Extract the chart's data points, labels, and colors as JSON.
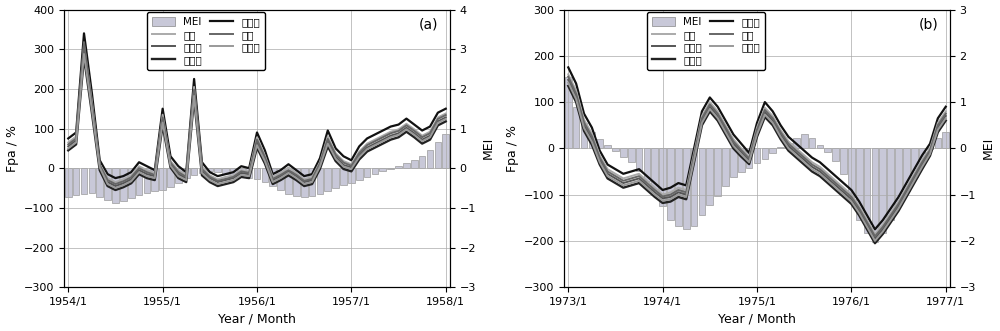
{
  "panel_a": {
    "label": "(a)",
    "xlabel": "Year / Month",
    "ylabel_left": "Fpa / %",
    "ylabel_right": "MEI",
    "ylim_left": [
      -300,
      400
    ],
    "ylim_right": [
      -3,
      4
    ],
    "yticks_left": [
      -300,
      -200,
      -100,
      0,
      100,
      200,
      300,
      400
    ],
    "yticks_right": [
      -3,
      -2,
      -1,
      0,
      1,
      2,
      3,
      4
    ],
    "xtick_labels": [
      "1954/1",
      "1955/1",
      "1956/1",
      "1957/1",
      "1958/1"
    ],
    "xtick_positions": [
      0,
      12,
      24,
      36,
      48
    ],
    "n_months": 49,
    "mei": [
      -0.72,
      -0.68,
      -0.65,
      -0.62,
      -0.72,
      -0.8,
      -0.88,
      -0.82,
      -0.75,
      -0.68,
      -0.62,
      -0.58,
      -0.55,
      -0.48,
      -0.38,
      -0.25,
      -0.18,
      -0.12,
      -0.08,
      -0.1,
      -0.15,
      -0.2,
      -0.22,
      -0.25,
      -0.28,
      -0.35,
      -0.45,
      -0.55,
      -0.65,
      -0.7,
      -0.72,
      -0.7,
      -0.65,
      -0.58,
      -0.5,
      -0.42,
      -0.38,
      -0.3,
      -0.22,
      -0.15,
      -0.08,
      -0.02,
      0.05,
      0.12,
      0.2,
      0.3,
      0.45,
      0.65,
      0.85
    ],
    "stations": {
      "洪家渡": [
        75,
        90,
        340,
        190,
        20,
        -15,
        -25,
        -20,
        -10,
        15,
        5,
        -5,
        150,
        30,
        5,
        -10,
        225,
        15,
        -10,
        -20,
        -15,
        -10,
        5,
        0,
        90,
        45,
        -15,
        -5,
        10,
        -5,
        -20,
        -15,
        25,
        95,
        50,
        30,
        20,
        55,
        75,
        85,
        95,
        105,
        110,
        125,
        110,
        95,
        105,
        140,
        150
      ],
      "普定": [
        65,
        80,
        310,
        170,
        10,
        -25,
        -35,
        -28,
        -18,
        5,
        -5,
        -12,
        135,
        18,
        -5,
        -18,
        205,
        5,
        -18,
        -28,
        -22,
        -18,
        -5,
        -8,
        78,
        32,
        -22,
        -12,
        2,
        -12,
        -28,
        -22,
        15,
        80,
        38,
        18,
        10,
        42,
        62,
        72,
        82,
        92,
        98,
        112,
        98,
        82,
        92,
        128,
        138
      ],
      "乌江渡": [
        55,
        70,
        295,
        155,
        5,
        -35,
        -45,
        -38,
        -28,
        -5,
        -15,
        -20,
        122,
        10,
        -15,
        -25,
        190,
        -8,
        -25,
        -35,
        -30,
        -25,
        -12,
        -15,
        65,
        22,
        -30,
        -20,
        -8,
        -20,
        -35,
        -30,
        8,
        68,
        28,
        8,
        2,
        32,
        52,
        62,
        72,
        82,
        88,
        102,
        88,
        72,
        82,
        118,
        128
      ],
      "大花水": [
        45,
        60,
        280,
        140,
        -5,
        -45,
        -55,
        -48,
        -38,
        -15,
        -25,
        -30,
        108,
        2,
        -25,
        -35,
        175,
        -18,
        -35,
        -45,
        -40,
        -35,
        -22,
        -25,
        52,
        12,
        -40,
        -30,
        -18,
        -30,
        -45,
        -40,
        -2,
        55,
        18,
        -2,
        -8,
        22,
        42,
        52,
        62,
        72,
        78,
        92,
        78,
        62,
        72,
        108,
        118
      ],
      "东风": [
        60,
        75,
        318,
        162,
        8,
        -30,
        -40,
        -33,
        -23,
        0,
        -10,
        -17,
        128,
        14,
        -10,
        -22,
        198,
        -2,
        -22,
        -32,
        -27,
        -22,
        -8,
        -12,
        72,
        28,
        -27,
        -17,
        -5,
        -17,
        -32,
        -27,
        12,
        74,
        34,
        14,
        6,
        38,
        58,
        68,
        78,
        88,
        94,
        108,
        94,
        78,
        88,
        124,
        134
      ],
      "构皮滩": [
        50,
        65,
        288,
        148,
        2,
        -40,
        -50,
        -43,
        -33,
        -10,
        -20,
        -25,
        115,
        6,
        -20,
        -30,
        182,
        -12,
        -30,
        -40,
        -35,
        -30,
        -17,
        -20,
        58,
        18,
        -35,
        -25,
        -12,
        -25,
        -40,
        -35,
        4,
        62,
        24,
        4,
        -2,
        28,
        48,
        58,
        68,
        78,
        84,
        98,
        84,
        68,
        78,
        114,
        124
      ]
    }
  },
  "panel_b": {
    "label": "(b)",
    "xlabel": "Year / Month",
    "ylabel_left": "Fpa / %",
    "ylabel_right": "MEI",
    "ylim_left": [
      -300,
      300
    ],
    "ylim_right": [
      -3,
      3
    ],
    "yticks_left": [
      -300,
      -200,
      -100,
      0,
      100,
      200,
      300
    ],
    "yticks_right": [
      -3,
      -2,
      -1,
      0,
      1,
      2,
      3
    ],
    "xtick_labels": [
      "1973/1",
      "1974/1",
      "1975/1",
      "1976/1",
      "1977/1"
    ],
    "xtick_positions": [
      0,
      12,
      24,
      36,
      48
    ],
    "n_months": 49,
    "mei": [
      1.55,
      0.9,
      0.55,
      0.35,
      0.2,
      0.08,
      -0.05,
      -0.18,
      -0.3,
      -0.5,
      -0.7,
      -0.9,
      -1.25,
      -1.55,
      -1.68,
      -1.75,
      -1.68,
      -1.45,
      -1.22,
      -1.02,
      -0.82,
      -0.62,
      -0.52,
      -0.42,
      -0.32,
      -0.22,
      -0.1,
      0.02,
      0.12,
      0.22,
      0.32,
      0.22,
      0.08,
      -0.08,
      -0.28,
      -0.55,
      -1.05,
      -1.55,
      -1.82,
      -2.02,
      -1.82,
      -1.55,
      -1.22,
      -0.92,
      -0.62,
      -0.32,
      -0.02,
      0.22,
      0.35
    ],
    "stations": {
      "洪家渡": [
        175,
        140,
        75,
        45,
        -5,
        -35,
        -45,
        -55,
        -50,
        -45,
        -60,
        -75,
        -90,
        -85,
        -75,
        -80,
        0,
        80,
        110,
        90,
        60,
        30,
        10,
        -10,
        55,
        100,
        80,
        50,
        25,
        10,
        -5,
        -20,
        -30,
        -45,
        -60,
        -75,
        -90,
        -115,
        -145,
        -175,
        -155,
        -130,
        -105,
        -75,
        -45,
        -15,
        10,
        65,
        90
      ],
      "普定": [
        160,
        125,
        62,
        32,
        -15,
        -45,
        -55,
        -65,
        -60,
        -55,
        -70,
        -85,
        -100,
        -95,
        -85,
        -90,
        -10,
        70,
        100,
        80,
        50,
        20,
        0,
        -18,
        45,
        88,
        70,
        40,
        15,
        0,
        -15,
        -30,
        -40,
        -55,
        -70,
        -85,
        -100,
        -125,
        -155,
        -185,
        -165,
        -140,
        -115,
        -85,
        -55,
        -25,
        0,
        55,
        80
      ],
      "乌江渡": [
        148,
        112,
        50,
        20,
        -25,
        -55,
        -65,
        -75,
        -70,
        -65,
        -80,
        -95,
        -108,
        -105,
        -95,
        -100,
        -20,
        60,
        90,
        70,
        40,
        10,
        -8,
        -26,
        35,
        78,
        60,
        30,
        5,
        -10,
        -25,
        -40,
        -50,
        -65,
        -80,
        -95,
        -110,
        -135,
        -165,
        -195,
        -175,
        -150,
        -125,
        -95,
        -65,
        -35,
        -8,
        45,
        70
      ],
      "大花水": [
        135,
        100,
        38,
        8,
        -35,
        -65,
        -75,
        -85,
        -80,
        -75,
        -90,
        -105,
        -118,
        -115,
        -105,
        -110,
        -30,
        50,
        80,
        60,
        30,
        0,
        -18,
        -34,
        25,
        68,
        50,
        20,
        -5,
        -20,
        -35,
        -50,
        -60,
        -75,
        -90,
        -105,
        -120,
        -145,
        -175,
        -205,
        -185,
        -160,
        -135,
        -105,
        -75,
        -45,
        -16,
        35,
        60
      ],
      "东风": [
        155,
        118,
        56,
        26,
        -20,
        -50,
        -60,
        -70,
        -65,
        -60,
        -75,
        -90,
        -104,
        -100,
        -90,
        -95,
        -15,
        65,
        95,
        75,
        45,
        15,
        -4,
        -22,
        40,
        83,
        65,
        35,
        10,
        -5,
        -20,
        -35,
        -45,
        -60,
        -75,
        -90,
        -105,
        -130,
        -160,
        -190,
        -170,
        -145,
        -120,
        -90,
        -60,
        -30,
        -4,
        50,
        75
      ],
      "构皮滩": [
        142,
        106,
        44,
        14,
        -30,
        -60,
        -70,
        -80,
        -75,
        -70,
        -85,
        -100,
        -113,
        -110,
        -100,
        -105,
        -25,
        55,
        85,
        65,
        35,
        5,
        -13,
        -30,
        30,
        73,
        55,
        25,
        0,
        -15,
        -30,
        -45,
        -55,
        -70,
        -85,
        -100,
        -115,
        -140,
        -170,
        -200,
        -180,
        -155,
        -130,
        -100,
        -70,
        -40,
        -12,
        40,
        65
      ]
    }
  },
  "bar_color": "#c8c8d8",
  "bar_edge_color": "#888888",
  "line_colors": {
    "洪家渡": "#111111",
    "普定": "#aaaaaa",
    "乌江渡": "#555555",
    "大花水": "#222222",
    "东风": "#666666",
    "构皮滩": "#999999"
  },
  "line_widths": {
    "洪家渡": 1.6,
    "普定": 1.4,
    "乌江渡": 1.4,
    "大花水": 1.7,
    "东风": 1.4,
    "构皮滩": 1.4
  },
  "legend_order_left": [
    "MEI",
    "普定",
    "乌江渡",
    "大花水"
  ],
  "legend_order_right": [
    "洪家渡",
    "东风",
    "构皮滩"
  ]
}
